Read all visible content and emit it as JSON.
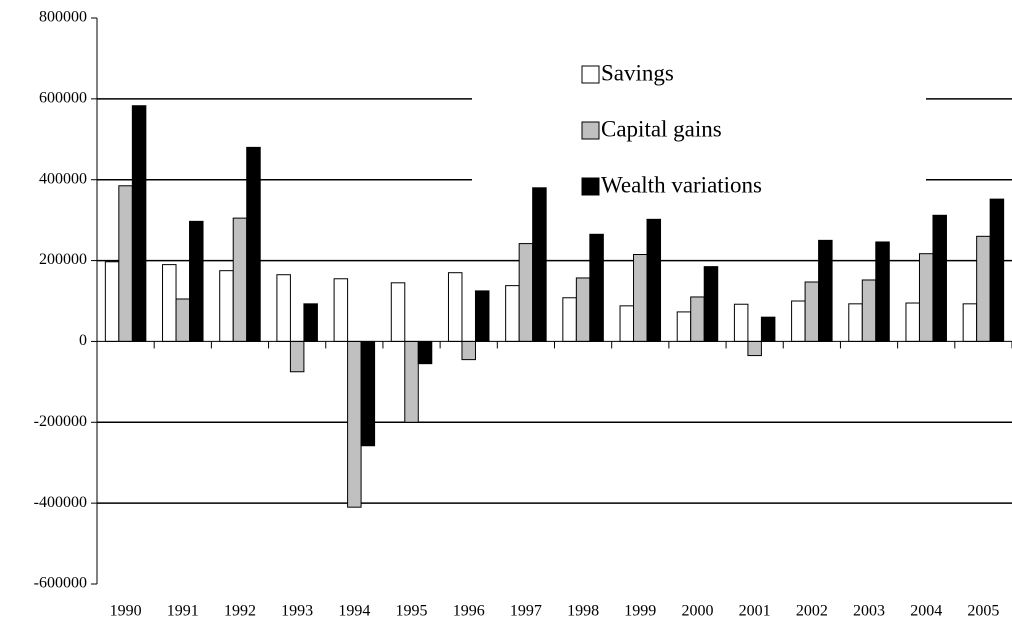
{
  "chart_data": {
    "type": "bar",
    "categories": [
      "1990",
      "1991",
      "1992",
      "1993",
      "1994",
      "1995",
      "1996",
      "1997",
      "1998",
      "1999",
      "2000",
      "2001",
      "2002",
      "2003",
      "2004",
      "2005"
    ],
    "series": [
      {
        "name": "Savings",
        "color": "#ffffff",
        "values": [
          197000,
          190000,
          175000,
          165000,
          155000,
          145000,
          170000,
          138000,
          108000,
          88000,
          73000,
          92000,
          100000,
          93000,
          95000,
          93000
        ]
      },
      {
        "name": "Capital gains",
        "color": "#c0c0c0",
        "values": [
          385000,
          105000,
          305000,
          -75000,
          -410000,
          -200000,
          -45000,
          242000,
          157000,
          215000,
          110000,
          -35000,
          147000,
          152000,
          217000,
          260000
        ]
      },
      {
        "name": "Wealth variations",
        "color": "#000000",
        "values": [
          583000,
          297000,
          480000,
          93000,
          -258000,
          -55000,
          125000,
          380000,
          265000,
          302000,
          185000,
          60000,
          250000,
          246000,
          312000,
          352000
        ]
      }
    ],
    "ylim": [
      -600000,
      800000
    ],
    "yticks": [
      -600000,
      -400000,
      -200000,
      0,
      200000,
      400000,
      600000,
      800000
    ],
    "grid": true
  }
}
